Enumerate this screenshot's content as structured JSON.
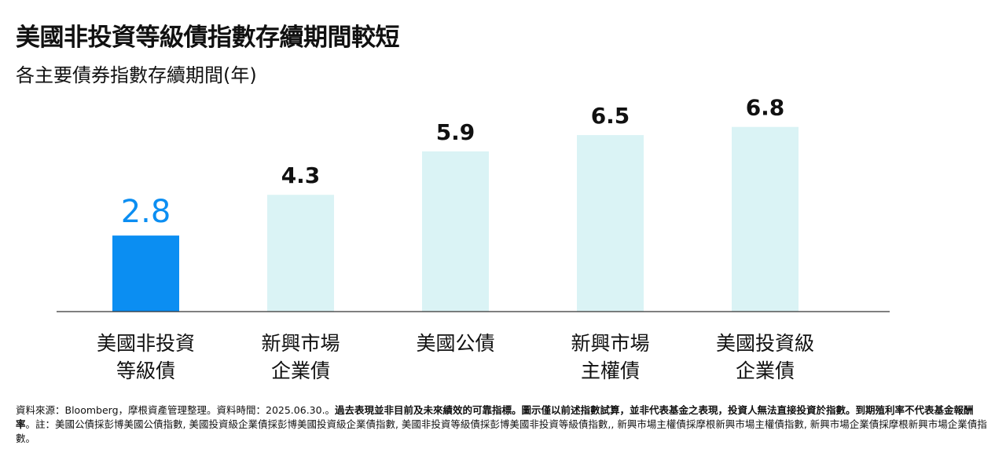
{
  "title": "美國非投資等級債指數存續期間較短",
  "subtitle": "各主要債券指數存續期間(年)",
  "colors": {
    "highlight": "#0b8ef2",
    "normal": "#daf3f5",
    "axis": "#333333",
    "text": "#111111"
  },
  "chart_data": {
    "type": "bar",
    "categories": [
      [
        "美國非投資",
        "等級債"
      ],
      [
        "新興市場",
        "企業債"
      ],
      [
        "美國公債"
      ],
      [
        "新興市場",
        "主權債"
      ],
      [
        "美國投資級",
        "企業債"
      ]
    ],
    "values": [
      2.8,
      4.3,
      5.9,
      6.5,
      6.8
    ],
    "value_labels": [
      "2.8",
      "4.3",
      "5.9",
      "6.5",
      "6.8"
    ],
    "highlight_index": 0,
    "ylim": [
      0,
      7.5
    ],
    "grid": false,
    "legend": false
  },
  "footer": {
    "source": "資料來源：Bloomberg，摩根資產管理整理。資料時間：2025.06.30.。",
    "disclaimer": "過去表現並非目前及未來績效的可靠指標。圖示僅以前述指數試算，並非代表基金之表現，投資人無法直接投資於指數。到期殖利率不代表基金報酬率",
    "note": "。註：美國公債採彭博美國公債指數, 美國投資級企業債採彭博美國投資級企業債指數, 美國非投資等級債採彭博美國非投資等級債指數,, 新興市場主權債採摩根新興市場主權債指數, 新興市場企業債採摩根新興市場企業債指數。"
  }
}
